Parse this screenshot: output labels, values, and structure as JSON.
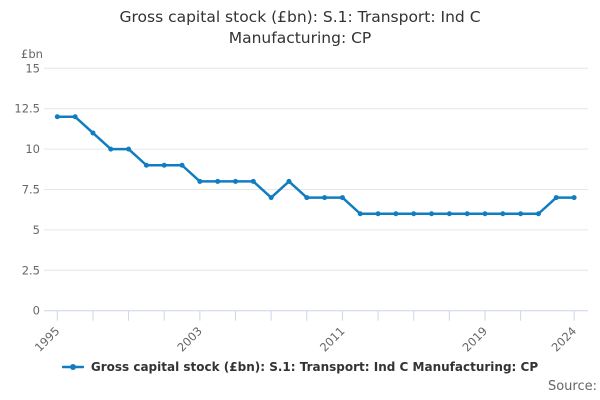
{
  "title": {
    "line1": "Gross capital stock (£bn): S.1: Transport: Ind C",
    "line2": "Manufacturing: CP"
  },
  "legend": {
    "label": "Gross capital stock (£bn): S.1: Transport: Ind C Manufacturing: CP",
    "marker": "line-with-dot"
  },
  "source_label": "Source:",
  "colors": {
    "series": "#107dc2",
    "grid": "#e6e6e6",
    "axis": "#ccd6eb",
    "tick_label": "#666666",
    "title": "#333333",
    "source": "#666666",
    "background": "#ffffff"
  },
  "chart_data": {
    "type": "line",
    "title": "Gross capital stock (£bn): S.1: Transport: Ind C Manufacturing: CP",
    "xlabel": "",
    "ylabel": "£bn",
    "x": [
      1995,
      1996,
      1997,
      1998,
      1999,
      2000,
      2001,
      2002,
      2003,
      2004,
      2005,
      2006,
      2007,
      2008,
      2009,
      2010,
      2011,
      2012,
      2013,
      2014,
      2015,
      2016,
      2017,
      2018,
      2019,
      2020,
      2021,
      2022,
      2023,
      2024
    ],
    "series": [
      {
        "name": "Gross capital stock (£bn): S.1: Transport: Ind C Manufacturing: CP",
        "color": "#107dc2",
        "values": [
          12,
          12,
          11,
          10,
          10,
          9,
          9,
          9,
          8,
          8,
          8,
          8,
          7,
          8,
          7,
          7,
          7,
          6,
          6,
          6,
          6,
          6,
          6,
          6,
          6,
          6,
          6,
          6,
          7,
          7
        ]
      }
    ],
    "ylim": [
      0,
      15
    ],
    "yticks": [
      0,
      2.5,
      5,
      7.5,
      10,
      12.5,
      15
    ],
    "xticks": [
      1995,
      1997,
      1999,
      2001,
      2003,
      2005,
      2007,
      2009,
      2011,
      2013,
      2015,
      2017,
      2019,
      2021,
      2024
    ],
    "xtick_labels": [
      1995,
      2003,
      2011,
      2019,
      2024
    ],
    "grid": "horizontal",
    "legend_position": "bottom",
    "markers": true
  }
}
